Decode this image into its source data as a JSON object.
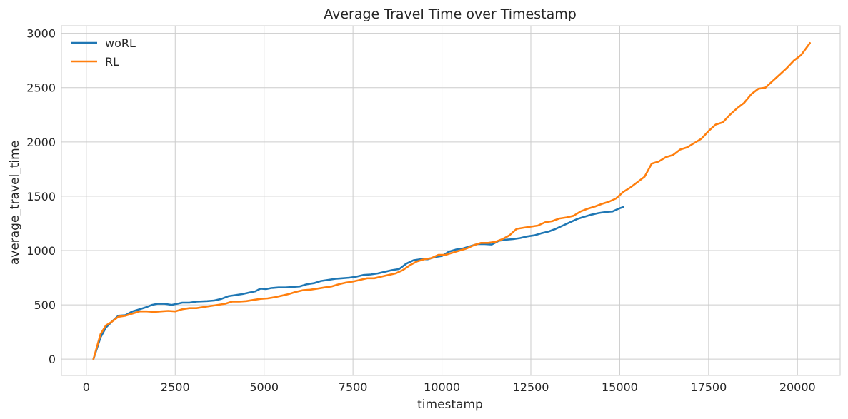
{
  "chart_data": {
    "type": "line",
    "title": "Average Travel Time over Timestamp",
    "xlabel": "timestamp",
    "ylabel": "average_travel_time",
    "xlim": [
      -700,
      21200
    ],
    "ylim": [
      -150,
      3070
    ],
    "xticks": [
      0,
      2500,
      5000,
      7500,
      10000,
      12500,
      15000,
      17500,
      20000
    ],
    "yticks": [
      0,
      500,
      1000,
      1500,
      2000,
      2500,
      3000
    ],
    "grid": true,
    "legend_position": "top-left",
    "series": [
      {
        "name": "woRL",
        "color": "#1f77b4",
        "points": [
          [
            200,
            0
          ],
          [
            400,
            200
          ],
          [
            550,
            290
          ],
          [
            700,
            340
          ],
          [
            900,
            400
          ],
          [
            1100,
            405
          ],
          [
            1300,
            440
          ],
          [
            1500,
            460
          ],
          [
            1700,
            480
          ],
          [
            1850,
            500
          ],
          [
            2000,
            510
          ],
          [
            2200,
            510
          ],
          [
            2400,
            500
          ],
          [
            2550,
            510
          ],
          [
            2700,
            520
          ],
          [
            2900,
            520
          ],
          [
            3100,
            530
          ],
          [
            3400,
            535
          ],
          [
            3600,
            540
          ],
          [
            3800,
            555
          ],
          [
            4000,
            580
          ],
          [
            4200,
            590
          ],
          [
            4400,
            600
          ],
          [
            4600,
            615
          ],
          [
            4750,
            625
          ],
          [
            4900,
            650
          ],
          [
            5050,
            645
          ],
          [
            5200,
            655
          ],
          [
            5400,
            660
          ],
          [
            5600,
            660
          ],
          [
            5800,
            665
          ],
          [
            6000,
            670
          ],
          [
            6200,
            690
          ],
          [
            6400,
            700
          ],
          [
            6600,
            720
          ],
          [
            6800,
            730
          ],
          [
            7000,
            740
          ],
          [
            7200,
            745
          ],
          [
            7400,
            750
          ],
          [
            7600,
            760
          ],
          [
            7800,
            775
          ],
          [
            8000,
            780
          ],
          [
            8200,
            790
          ],
          [
            8400,
            805
          ],
          [
            8600,
            820
          ],
          [
            8800,
            830
          ],
          [
            9000,
            880
          ],
          [
            9200,
            910
          ],
          [
            9400,
            920
          ],
          [
            9600,
            920
          ],
          [
            9800,
            940
          ],
          [
            10000,
            950
          ],
          [
            10200,
            990
          ],
          [
            10400,
            1010
          ],
          [
            10600,
            1020
          ],
          [
            10800,
            1040
          ],
          [
            11000,
            1060
          ],
          [
            11200,
            1060
          ],
          [
            11400,
            1055
          ],
          [
            11600,
            1090
          ],
          [
            11800,
            1100
          ],
          [
            12000,
            1105
          ],
          [
            12200,
            1115
          ],
          [
            12400,
            1130
          ],
          [
            12600,
            1140
          ],
          [
            12800,
            1160
          ],
          [
            13000,
            1175
          ],
          [
            13200,
            1200
          ],
          [
            13400,
            1230
          ],
          [
            13600,
            1260
          ],
          [
            13800,
            1290
          ],
          [
            14000,
            1310
          ],
          [
            14200,
            1330
          ],
          [
            14400,
            1345
          ],
          [
            14600,
            1355
          ],
          [
            14800,
            1360
          ],
          [
            15000,
            1390
          ],
          [
            15100,
            1400
          ]
        ]
      },
      {
        "name": "RL",
        "color": "#ff7f0e",
        "points": [
          [
            200,
            0
          ],
          [
            400,
            230
          ],
          [
            550,
            310
          ],
          [
            700,
            340
          ],
          [
            900,
            390
          ],
          [
            1100,
            400
          ],
          [
            1300,
            420
          ],
          [
            1500,
            440
          ],
          [
            1700,
            440
          ],
          [
            1900,
            435
          ],
          [
            2100,
            440
          ],
          [
            2300,
            445
          ],
          [
            2500,
            440
          ],
          [
            2700,
            460
          ],
          [
            2900,
            470
          ],
          [
            3100,
            470
          ],
          [
            3300,
            480
          ],
          [
            3500,
            490
          ],
          [
            3700,
            500
          ],
          [
            3900,
            510
          ],
          [
            4100,
            530
          ],
          [
            4300,
            530
          ],
          [
            4500,
            535
          ],
          [
            4700,
            545
          ],
          [
            4900,
            555
          ],
          [
            5100,
            560
          ],
          [
            5300,
            570
          ],
          [
            5500,
            585
          ],
          [
            5700,
            600
          ],
          [
            5900,
            620
          ],
          [
            6100,
            635
          ],
          [
            6300,
            640
          ],
          [
            6500,
            650
          ],
          [
            6700,
            660
          ],
          [
            6900,
            670
          ],
          [
            7100,
            690
          ],
          [
            7300,
            705
          ],
          [
            7500,
            715
          ],
          [
            7700,
            730
          ],
          [
            7900,
            745
          ],
          [
            8100,
            745
          ],
          [
            8300,
            760
          ],
          [
            8500,
            775
          ],
          [
            8700,
            790
          ],
          [
            8900,
            820
          ],
          [
            9100,
            865
          ],
          [
            9300,
            900
          ],
          [
            9500,
            920
          ],
          [
            9700,
            930
          ],
          [
            9900,
            960
          ],
          [
            10100,
            960
          ],
          [
            10300,
            980
          ],
          [
            10500,
            1000
          ],
          [
            10700,
            1020
          ],
          [
            10900,
            1050
          ],
          [
            11100,
            1070
          ],
          [
            11300,
            1070
          ],
          [
            11500,
            1080
          ],
          [
            11700,
            1105
          ],
          [
            11900,
            1140
          ],
          [
            12100,
            1200
          ],
          [
            12300,
            1210
          ],
          [
            12500,
            1220
          ],
          [
            12700,
            1230
          ],
          [
            12900,
            1260
          ],
          [
            13100,
            1270
          ],
          [
            13300,
            1295
          ],
          [
            13500,
            1305
          ],
          [
            13700,
            1320
          ],
          [
            13900,
            1360
          ],
          [
            14100,
            1385
          ],
          [
            14300,
            1405
          ],
          [
            14500,
            1430
          ],
          [
            14700,
            1450
          ],
          [
            14900,
            1480
          ],
          [
            15100,
            1540
          ],
          [
            15300,
            1580
          ],
          [
            15500,
            1630
          ],
          [
            15700,
            1680
          ],
          [
            15900,
            1800
          ],
          [
            16100,
            1820
          ],
          [
            16300,
            1860
          ],
          [
            16500,
            1880
          ],
          [
            16700,
            1930
          ],
          [
            16900,
            1950
          ],
          [
            17100,
            1990
          ],
          [
            17300,
            2030
          ],
          [
            17500,
            2100
          ],
          [
            17700,
            2160
          ],
          [
            17900,
            2180
          ],
          [
            18100,
            2250
          ],
          [
            18300,
            2310
          ],
          [
            18500,
            2360
          ],
          [
            18700,
            2440
          ],
          [
            18900,
            2490
          ],
          [
            19100,
            2500
          ],
          [
            19300,
            2560
          ],
          [
            19500,
            2620
          ],
          [
            19700,
            2680
          ],
          [
            19900,
            2750
          ],
          [
            20100,
            2800
          ],
          [
            20350,
            2910
          ]
        ]
      }
    ]
  }
}
